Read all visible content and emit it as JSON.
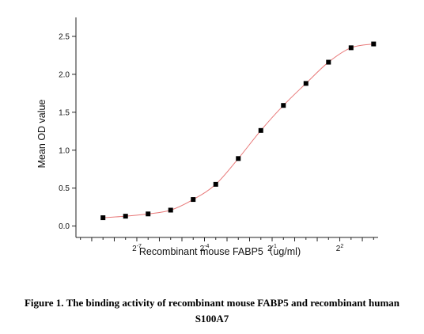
{
  "chart_data": {
    "type": "scatter",
    "xlabel": "Recombinant mouse FABP5（ug/ml)",
    "ylabel": "Mean OD value",
    "ylim": [
      -0.15,
      2.75
    ],
    "xlim_log2": [
      -9.7,
      3.7
    ],
    "yticks": [
      "0.0",
      "0.5",
      "1.0",
      "1.5",
      "2.0",
      "2.5"
    ],
    "xticks": [
      {
        "base": "2",
        "exp": "-7"
      },
      {
        "base": "2",
        "exp": "-4"
      },
      {
        "base": "2",
        "exp": "-1"
      },
      {
        "base": "2",
        "exp": "2"
      }
    ],
    "grid": false,
    "colors": {
      "points": "#000000",
      "fit": "#e87878",
      "axis": "#222222"
    },
    "series": [
      {
        "x_log2": [
          -8.5,
          -7.5,
          -6.5,
          -5.5,
          -4.5,
          -3.5,
          -2.5,
          -1.5,
          -0.5,
          0.5,
          1.5,
          2.5,
          3.5
        ],
        "y": [
          0.11,
          0.13,
          0.16,
          0.21,
          0.35,
          0.55,
          0.89,
          1.26,
          1.59,
          1.88,
          2.16,
          2.35,
          2.4
        ]
      }
    ]
  },
  "caption": {
    "line1": "Figure 1. The binding activity of recombinant mouse FABP5 and recombinant human",
    "line2": "S100A7"
  }
}
